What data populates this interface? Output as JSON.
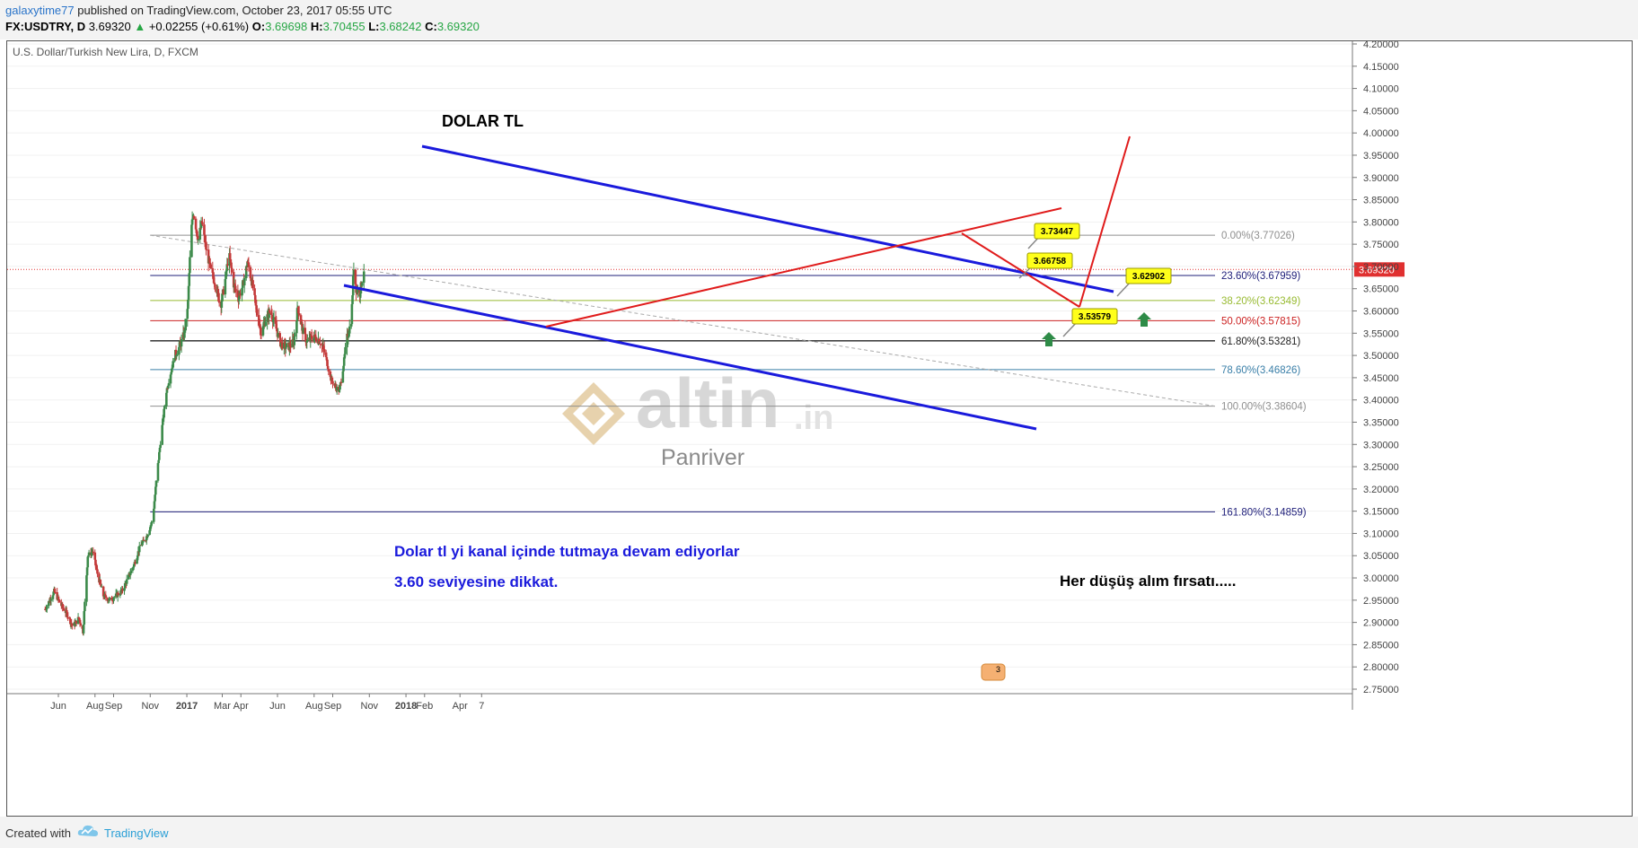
{
  "header": {
    "user": "galaxytime77",
    "published": "published on TradingView.com, October 23, 2017 05:55 UTC",
    "symbol": "FX:USDTRY, D",
    "last": "3.69320",
    "change_arrow": "▲",
    "change": "+0.02255 (+0.61%)",
    "o_label": "O:",
    "o": "3.69698",
    "h_label": "H:",
    "h": "3.70455",
    "l_label": "L:",
    "l": "3.68242",
    "c_label": "C:",
    "c": "3.69320"
  },
  "footer": {
    "created_with": "Created with",
    "brand": "TradingView"
  },
  "colors": {
    "channel": "#1a1adc",
    "triangle": "#e01b1b",
    "up_candle": "#3c8a4a",
    "down_candle": "#c43a3a",
    "price_tag": "#e03030",
    "annot_text": "#1a1adc",
    "callout_bg": "#ffff1a",
    "arrow_green": "#2e8b47"
  },
  "chart_data": {
    "type": "candlestick",
    "title": "U.S. Dollar/Turkish New Lira, D, FXCM",
    "ylim": [
      2.75,
      4.2
    ],
    "x_ticks": [
      "Jun",
      "Aug",
      "Sep",
      "Nov",
      "2017",
      "Mar",
      "Apr",
      "Jun",
      "Aug",
      "Sep",
      "Nov",
      "2018",
      "Feb",
      "Apr",
      "7"
    ],
    "y_ticks": [
      "4.20000",
      "4.15000",
      "4.10000",
      "4.05000",
      "4.00000",
      "3.95000",
      "3.90000",
      "3.85000",
      "3.80000",
      "3.75000",
      "3.70000",
      "3.65000",
      "3.60000",
      "3.55000",
      "3.50000",
      "3.45000",
      "3.40000",
      "3.35000",
      "3.30000",
      "3.25000",
      "3.20000",
      "3.15000",
      "3.10000",
      "3.05000",
      "3.00000",
      "2.95000",
      "2.90000",
      "2.85000",
      "2.80000",
      "2.75000"
    ],
    "last_price": "3.69320",
    "price_series": [
      {
        "date": "2016-05-10",
        "close": 2.93
      },
      {
        "date": "2016-05-25",
        "close": 2.97
      },
      {
        "date": "2016-06-05",
        "close": 2.94
      },
      {
        "date": "2016-06-15",
        "close": 2.92
      },
      {
        "date": "2016-06-25",
        "close": 2.89
      },
      {
        "date": "2016-07-05",
        "close": 2.91
      },
      {
        "date": "2016-07-12",
        "close": 2.88
      },
      {
        "date": "2016-07-20",
        "close": 3.05
      },
      {
        "date": "2016-07-28",
        "close": 3.06
      },
      {
        "date": "2016-08-05",
        "close": 3.01
      },
      {
        "date": "2016-08-15",
        "close": 2.96
      },
      {
        "date": "2016-08-25",
        "close": 2.95
      },
      {
        "date": "2016-09-05",
        "close": 2.96
      },
      {
        "date": "2016-09-15",
        "close": 2.97
      },
      {
        "date": "2016-09-25",
        "close": 3.0
      },
      {
        "date": "2016-10-05",
        "close": 3.03
      },
      {
        "date": "2016-10-15",
        "close": 3.07
      },
      {
        "date": "2016-10-25",
        "close": 3.09
      },
      {
        "date": "2016-11-05",
        "close": 3.13
      },
      {
        "date": "2016-11-12",
        "close": 3.23
      },
      {
        "date": "2016-11-20",
        "close": 3.33
      },
      {
        "date": "2016-11-28",
        "close": 3.42
      },
      {
        "date": "2016-12-05",
        "close": 3.46
      },
      {
        "date": "2016-12-12",
        "close": 3.5
      },
      {
        "date": "2016-12-20",
        "close": 3.52
      },
      {
        "date": "2016-12-28",
        "close": 3.55
      },
      {
        "date": "2017-01-03",
        "close": 3.62
      },
      {
        "date": "2017-01-08",
        "close": 3.78
      },
      {
        "date": "2017-01-12",
        "close": 3.82
      },
      {
        "date": "2017-01-20",
        "close": 3.76
      },
      {
        "date": "2017-01-26",
        "close": 3.8
      },
      {
        "date": "2017-02-02",
        "close": 3.74
      },
      {
        "date": "2017-02-10",
        "close": 3.69
      },
      {
        "date": "2017-02-18",
        "close": 3.66
      },
      {
        "date": "2017-02-26",
        "close": 3.61
      },
      {
        "date": "2017-03-05",
        "close": 3.66
      },
      {
        "date": "2017-03-12",
        "close": 3.73
      },
      {
        "date": "2017-03-20",
        "close": 3.66
      },
      {
        "date": "2017-03-28",
        "close": 3.63
      },
      {
        "date": "2017-04-05",
        "close": 3.66
      },
      {
        "date": "2017-04-12",
        "close": 3.71
      },
      {
        "date": "2017-04-20",
        "close": 3.66
      },
      {
        "date": "2017-04-27",
        "close": 3.6
      },
      {
        "date": "2017-05-05",
        "close": 3.55
      },
      {
        "date": "2017-05-12",
        "close": 3.58
      },
      {
        "date": "2017-05-20",
        "close": 3.6
      },
      {
        "date": "2017-05-28",
        "close": 3.57
      },
      {
        "date": "2017-06-05",
        "close": 3.53
      },
      {
        "date": "2017-06-12",
        "close": 3.52
      },
      {
        "date": "2017-06-20",
        "close": 3.52
      },
      {
        "date": "2017-06-28",
        "close": 3.53
      },
      {
        "date": "2017-07-05",
        "close": 3.61
      },
      {
        "date": "2017-07-12",
        "close": 3.56
      },
      {
        "date": "2017-07-20",
        "close": 3.53
      },
      {
        "date": "2017-07-28",
        "close": 3.54
      },
      {
        "date": "2017-08-05",
        "close": 3.54
      },
      {
        "date": "2017-08-12",
        "close": 3.53
      },
      {
        "date": "2017-08-20",
        "close": 3.5
      },
      {
        "date": "2017-08-28",
        "close": 3.45
      },
      {
        "date": "2017-09-05",
        "close": 3.43
      },
      {
        "date": "2017-09-12",
        "close": 3.42
      },
      {
        "date": "2017-09-18",
        "close": 3.47
      },
      {
        "date": "2017-09-25",
        "close": 3.54
      },
      {
        "date": "2017-10-02",
        "close": 3.58
      },
      {
        "date": "2017-10-06",
        "close": 3.7
      },
      {
        "date": "2017-10-10",
        "close": 3.65
      },
      {
        "date": "2017-10-16",
        "close": 3.64
      },
      {
        "date": "2017-10-23",
        "close": 3.6932
      }
    ],
    "fib_levels": [
      {
        "label": "0.00%(3.77026)",
        "value": 3.77026,
        "color": "#8f8f8f"
      },
      {
        "label": "23.60%(3.67959)",
        "value": 3.67959,
        "color": "#1f1f7a"
      },
      {
        "label": "38.20%(3.62349)",
        "value": 3.62349,
        "color": "#99bb33"
      },
      {
        "label": "50.00%(3.57815)",
        "value": 3.57815,
        "color": "#cc2222"
      },
      {
        "label": "61.80%(3.53281)",
        "value": 3.53281,
        "color": "#222222"
      },
      {
        "label": "78.60%(3.46826)",
        "value": 3.46826,
        "color": "#3a7fa8"
      },
      {
        "label": "100.00%(3.38604)",
        "value": 3.38604,
        "color": "#8f8f8f"
      },
      {
        "label": "161.80%(3.14859)",
        "value": 3.14859,
        "color": "#1f1f7a"
      }
    ],
    "callouts": [
      "3.73447",
      "3.66758",
      "3.62902",
      "3.53579"
    ],
    "annotations": {
      "heading": "DOLAR TL",
      "note1": "Dolar tl yi kanal içinde tutmaya devam ediyorlar",
      "note2": "3.60 seviyesine dikkat.",
      "note3": "Her düşüş alım fırsatı.....",
      "badge": "3"
    },
    "watermark": {
      "brand": "altin",
      "suffix": ".in",
      "sub": "Panriver"
    }
  }
}
